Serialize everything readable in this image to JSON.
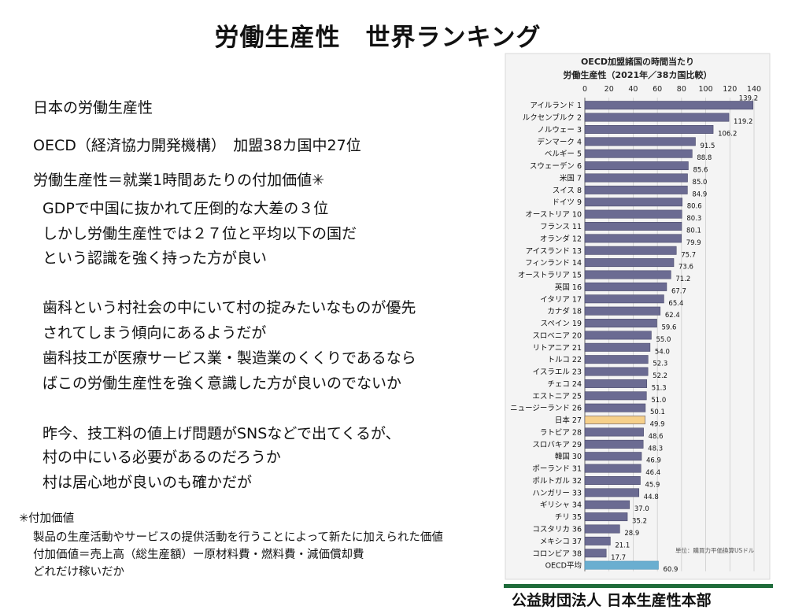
{
  "slide": {
    "title": "労働生産性　世界ランキング",
    "lines": [
      "日本の労働生産性",
      "OECD（経済協力開発機構）　加盟38カ国中27位",
      "労働生産性＝就業1時間あたりの付加価値✳︎",
      "GDPで中国に抜かれて圧倒的な大差の３位",
      "しかし労働生産性では２７位と平均以下の国だ",
      "という認識を強く持った方が良い",
      "歯科という村社会の中にいて村の掟みたいなものが優先",
      "されてしまう傾向にあるようだが",
      "歯科技工が医療サービス業・製造業のくくりであるなら",
      "ばこの労働生産性を強く意識した方が良いのでないか",
      "昨今、技工料の値上げ問題がSNSなどで出てくるが、",
      "村の中にいる必要があるのだろうか",
      "村は居心地が良いのも確かだが"
    ],
    "footnote": {
      "heading": "✳︎付加価値",
      "lines": [
        "製品の生産活動やサービスの提供活動を行うことによって新たに加えられた価値",
        "付加価値＝売上高（総生産額）ー原材料費・燃料費・減価償却費",
        "どれだけ稼いだか"
      ]
    }
  },
  "chart_data": {
    "type": "bar",
    "orientation": "horizontal",
    "title": "OECD加盟諸国の時間当たり",
    "subtitle": "労働生産性（2021年／38カ国比較）",
    "unit_note": "単位：購買力平価換算USドル",
    "xlim": [
      0,
      140
    ],
    "xticks": [
      0,
      20,
      40,
      60,
      80,
      100,
      120,
      140
    ],
    "categories": [
      "アイルランド 1",
      "ルクセンブルク 2",
      "ノルウェー 3",
      "デンマーク 4",
      "ベルギー 5",
      "スウェーデン 6",
      "米国 7",
      "スイス 8",
      "ドイツ 9",
      "オーストリア 10",
      "フランス 11",
      "オランダ 12",
      "アイスランド 13",
      "フィンランド 14",
      "オーストラリア 15",
      "英国 16",
      "イタリア 17",
      "カナダ 18",
      "スペイン 19",
      "スロベニア 20",
      "リトアニア 21",
      "トルコ 22",
      "イスラエル 23",
      "チェコ 24",
      "エストニア 25",
      "ニュージーランド 26",
      "日本 27",
      "ラトビア 28",
      "スロバキア 29",
      "韓国 30",
      "ポーランド 31",
      "ポルトガル 32",
      "ハンガリー 33",
      "ギリシャ 34",
      "チリ 35",
      "コスタリカ 36",
      "メキシコ 37",
      "コロンビア 38",
      "OECD平均"
    ],
    "values": [
      139.2,
      119.2,
      106.2,
      91.5,
      88.8,
      85.6,
      85.0,
      84.9,
      80.6,
      80.3,
      80.1,
      79.9,
      75.7,
      73.6,
      71.2,
      67.7,
      65.4,
      62.4,
      59.6,
      55.0,
      54.0,
      52.3,
      52.2,
      51.3,
      51.0,
      50.1,
      49.9,
      48.6,
      48.3,
      46.9,
      46.4,
      45.9,
      44.8,
      37.0,
      35.2,
      28.9,
      21.1,
      17.7,
      60.9
    ],
    "value_labels": [
      "139.2",
      "119.2",
      "106.2",
      "91.5",
      "88.8",
      "85.6",
      "85.0",
      "84.9",
      "80.6",
      "80.3",
      "80.1",
      "79.9",
      "75.7",
      "73.6",
      "71.2",
      "67.7",
      "65.4",
      "62.4",
      "59.6",
      "55.0",
      "54.0",
      "52.3",
      "52.2",
      "51.3",
      "51.0",
      "50.1",
      "49.9",
      "48.6",
      "48.3",
      "46.9",
      "46.4",
      "45.9",
      "44.8",
      "37.0",
      "35.2",
      "28.9",
      "21.1",
      "17.7",
      "60.9"
    ],
    "highlight": {
      "日本 27": "#f6d08a",
      "OECD平均": "#6aaed0"
    },
    "bar_color": "#6b6b92",
    "grid": true,
    "source": "公益財団法人 日本生産性本部"
  }
}
